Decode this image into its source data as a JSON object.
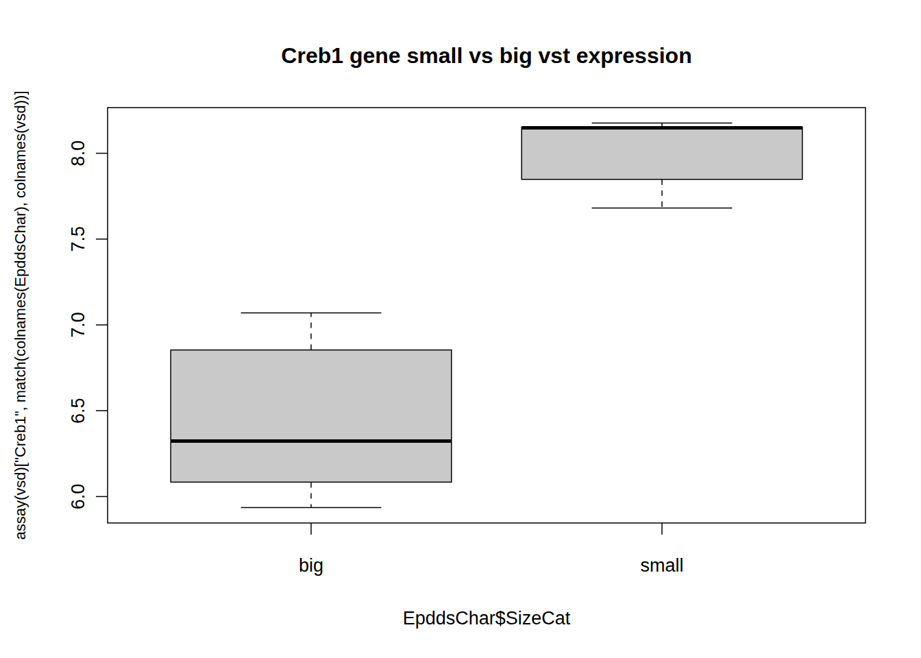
{
  "chart_data": {
    "type": "box",
    "title": "Creb1 gene small vs big vst expression",
    "x_label": "EpddsChar$SizeCat",
    "y_label": "assay(vsd)[\"Creb1\", match(colnames(EpddsChar), colnames(vsd))]",
    "categories": [
      "big",
      "small"
    ],
    "whisker_low": [
      5.936,
      7.681
    ],
    "q1": [
      6.084,
      7.848
    ],
    "median": [
      6.323,
      8.148
    ],
    "q3": [
      6.854,
      8.152
    ],
    "whisker_high": [
      7.07,
      8.176
    ],
    "color": "#c9c9c9",
    "ylim": [
      5.846,
      8.266
    ],
    "yticks": [
      {
        "value": 6,
        "label": "6.0"
      },
      {
        "value": 6.5,
        "label": "6.5"
      },
      {
        "value": 7,
        "label": "7.0"
      },
      {
        "value": 7.5,
        "label": "7.5"
      },
      {
        "value": 8,
        "label": "8.0"
      }
    ]
  }
}
